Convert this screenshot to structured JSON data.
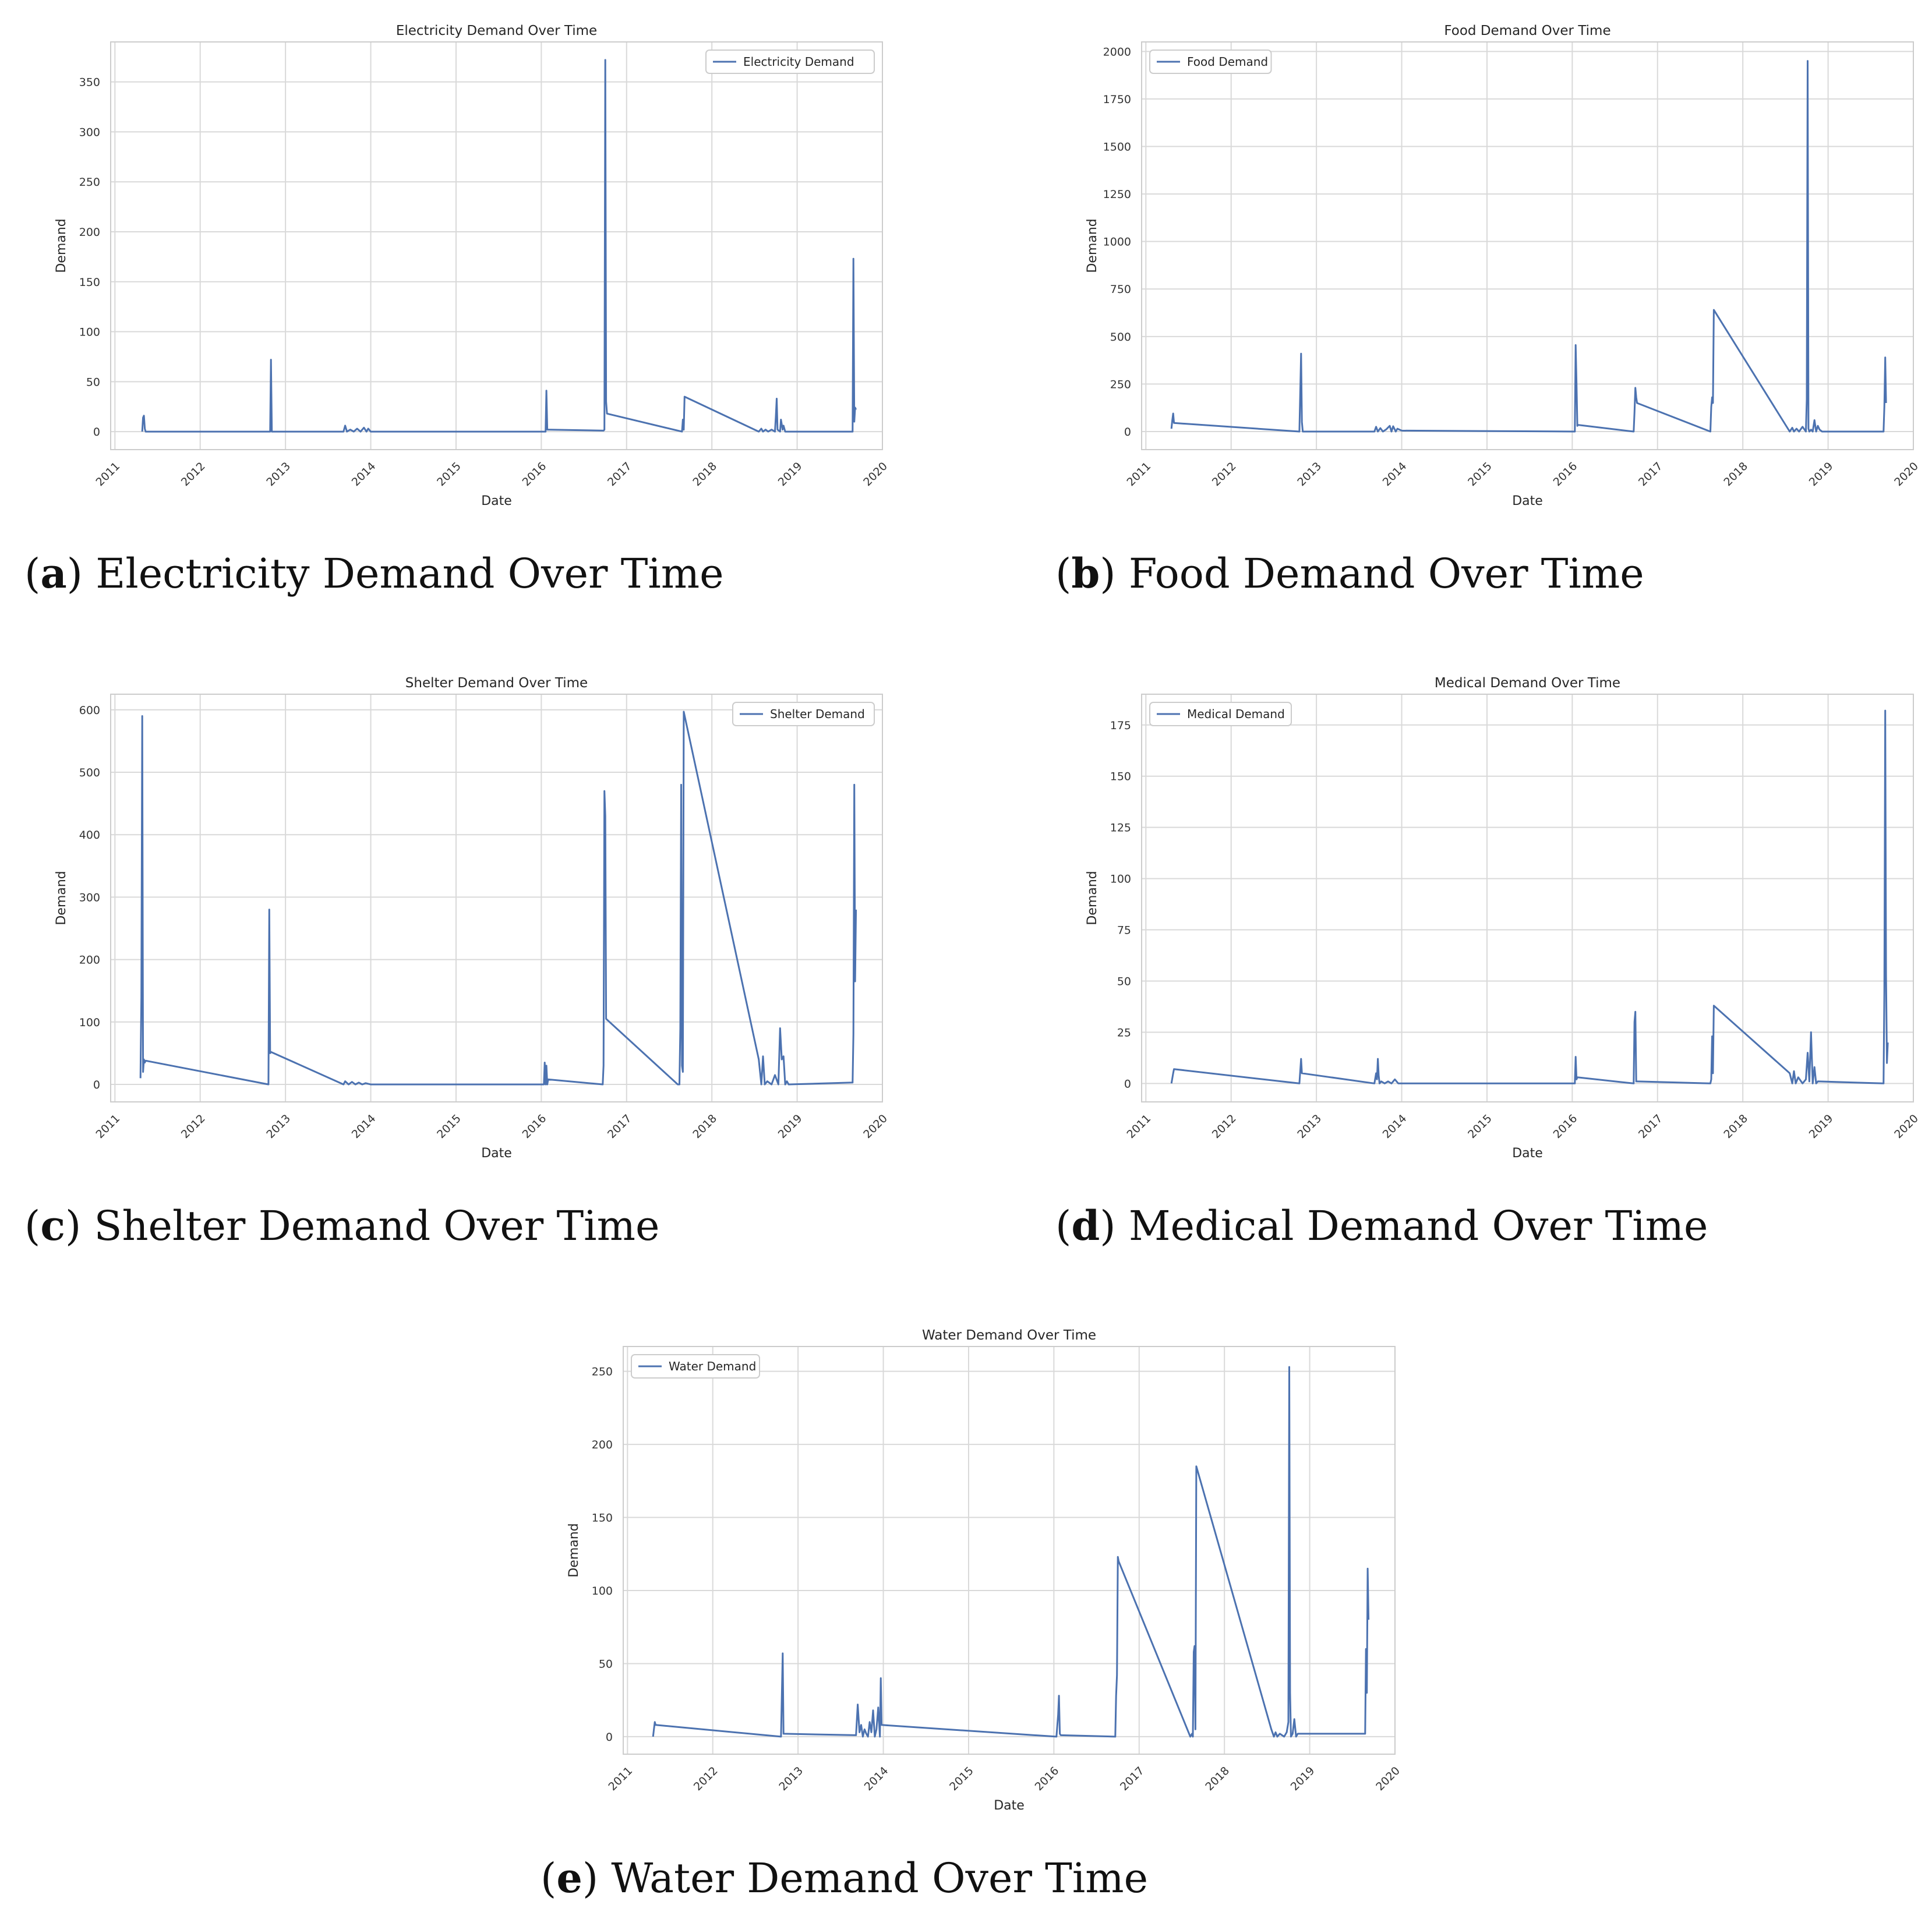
{
  "colors": {
    "line": "#4c72b0",
    "grid": "#d9d9d9",
    "axes_border": "#cccccc",
    "background": "#ffffff"
  },
  "chart_data": [
    {
      "id": "a",
      "type": "line",
      "title": "Electricity Demand Over Time",
      "xlabel": "Date",
      "ylabel": "Demand",
      "xlim": [
        2010.95,
        2020.0
      ],
      "ylim": [
        -18,
        390
      ],
      "xticks": [
        2011,
        2012,
        2013,
        2014,
        2015,
        2016,
        2017,
        2018,
        2019,
        2020
      ],
      "xtick_labels": [
        "2011",
        "2012",
        "2013",
        "2014",
        "2015",
        "2016",
        "2017",
        "2018",
        "2019",
        "2020"
      ],
      "yticks": [
        0,
        50,
        100,
        150,
        200,
        250,
        300,
        350
      ],
      "ytick_labels": [
        "0",
        "50",
        "100",
        "150",
        "200",
        "250",
        "300",
        "350"
      ],
      "legend_loc": "upper right",
      "grid": true,
      "series": [
        {
          "name": "Electricity Demand",
          "x": [
            2011.32,
            2011.33,
            2011.34,
            2011.35,
            2011.36,
            2012.82,
            2012.83,
            2012.84,
            2013.68,
            2013.7,
            2013.72,
            2013.76,
            2013.8,
            2013.84,
            2013.88,
            2013.92,
            2013.95,
            2013.97,
            2014.0,
            2016.05,
            2016.06,
            2016.07,
            2016.08,
            2016.1,
            2016.73,
            2016.74,
            2016.75,
            2016.76,
            2016.77,
            2017.65,
            2017.66,
            2017.67,
            2017.68,
            2018.55,
            2018.58,
            2018.6,
            2018.63,
            2018.66,
            2018.7,
            2018.74,
            2018.75,
            2018.76,
            2018.77,
            2018.8,
            2018.81,
            2018.83,
            2018.84,
            2018.86,
            2018.88,
            2019.65,
            2019.66,
            2019.67,
            2019.68,
            2019.69
          ],
          "values": [
            0,
            14,
            16,
            3,
            0,
            0,
            72,
            0,
            0,
            6,
            0,
            2,
            0,
            3,
            0,
            4,
            0,
            3,
            0,
            0,
            41,
            2,
            2,
            2,
            1,
            2,
            372,
            30,
            18,
            0,
            12,
            2,
            35,
            0,
            3,
            0,
            2,
            0,
            2,
            0,
            15,
            33,
            2,
            0,
            12,
            2,
            6,
            0,
            0,
            0,
            173,
            10,
            24,
            22
          ]
        }
      ]
    },
    {
      "id": "b",
      "type": "line",
      "title": "Food Demand Over Time",
      "xlabel": "Date",
      "ylabel": "Demand",
      "xlim": [
        2010.95,
        2020.0
      ],
      "ylim": [
        -95,
        2050
      ],
      "xticks": [
        2011,
        2012,
        2013,
        2014,
        2015,
        2016,
        2017,
        2018,
        2019,
        2020
      ],
      "xtick_labels": [
        "2011",
        "2012",
        "2013",
        "2014",
        "2015",
        "2016",
        "2017",
        "2018",
        "2019",
        "2020"
      ],
      "yticks": [
        0,
        250,
        500,
        750,
        1000,
        1250,
        1500,
        1750,
        2000
      ],
      "ytick_labels": [
        "0",
        "250",
        "500",
        "750",
        "1000",
        "1250",
        "1500",
        "1750",
        "2000"
      ],
      "legend_loc": "upper left",
      "grid": true,
      "series": [
        {
          "name": "Food Demand",
          "x": [
            2011.3,
            2011.31,
            2011.32,
            2011.33,
            2012.8,
            2012.82,
            2012.83,
            2012.84,
            2013.68,
            2013.7,
            2013.72,
            2013.75,
            2013.78,
            2013.82,
            2013.86,
            2013.88,
            2013.9,
            2013.93,
            2013.95,
            2014.0,
            2016.03,
            2016.04,
            2016.05,
            2016.06,
            2016.07,
            2016.72,
            2016.73,
            2016.74,
            2016.75,
            2016.76,
            2017.62,
            2017.63,
            2017.64,
            2017.65,
            2017.66,
            2018.55,
            2018.58,
            2018.6,
            2018.63,
            2018.66,
            2018.7,
            2018.74,
            2018.75,
            2018.76,
            2018.77,
            2018.78,
            2018.8,
            2018.82,
            2018.84,
            2018.86,
            2018.88,
            2018.9,
            2018.93,
            2019.65,
            2019.66,
            2019.67,
            2019.68
          ],
          "values": [
            15,
            60,
            95,
            45,
            0,
            410,
            50,
            0,
            0,
            25,
            0,
            18,
            0,
            12,
            30,
            0,
            28,
            0,
            15,
            5,
            0,
            455,
            250,
            30,
            35,
            0,
            100,
            230,
            180,
            150,
            0,
            130,
            180,
            150,
            640,
            0,
            20,
            0,
            15,
            0,
            25,
            0,
            170,
            1950,
            15,
            0,
            10,
            0,
            60,
            0,
            30,
            10,
            0,
            0,
            130,
            390,
            150
          ]
        }
      ]
    },
    {
      "id": "c",
      "type": "line",
      "title": "Shelter Demand Over Time",
      "xlabel": "Date",
      "ylabel": "Demand",
      "xlim": [
        2010.95,
        2020.0
      ],
      "ylim": [
        -28,
        625
      ],
      "xticks": [
        2011,
        2012,
        2013,
        2014,
        2015,
        2016,
        2017,
        2018,
        2019,
        2020
      ],
      "xtick_labels": [
        "2011",
        "2012",
        "2013",
        "2014",
        "2015",
        "2016",
        "2017",
        "2018",
        "2019",
        "2020"
      ],
      "yticks": [
        0,
        100,
        200,
        300,
        400,
        500,
        600
      ],
      "ytick_labels": [
        "0",
        "100",
        "200",
        "300",
        "400",
        "500",
        "600"
      ],
      "legend_loc": "upper right",
      "grid": true,
      "series": [
        {
          "name": "Shelter Demand",
          "x": [
            2011.3,
            2011.31,
            2011.32,
            2011.33,
            2011.34,
            2011.35,
            2011.36,
            2012.8,
            2012.81,
            2012.82,
            2012.83,
            2013.68,
            2013.7,
            2013.74,
            2013.78,
            2013.82,
            2013.86,
            2013.9,
            2013.94,
            2014.0,
            2016.03,
            2016.04,
            2016.05,
            2016.06,
            2016.07,
            2016.08,
            2016.72,
            2016.73,
            2016.74,
            2016.75,
            2016.76,
            2017.6,
            2017.62,
            2017.63,
            2017.64,
            2017.65,
            2017.66,
            2017.67,
            2018.55,
            2018.58,
            2018.6,
            2018.62,
            2018.65,
            2018.7,
            2018.74,
            2018.78,
            2018.8,
            2018.82,
            2018.84,
            2018.86,
            2018.88,
            2018.9,
            2019.65,
            2019.66,
            2019.67,
            2019.68,
            2019.69
          ],
          "values": [
            10,
            140,
            590,
            20,
            40,
            35,
            38,
            0,
            280,
            50,
            52,
            0,
            5,
            0,
            4,
            0,
            3,
            0,
            2,
            0,
            0,
            35,
            0,
            30,
            0,
            8,
            0,
            30,
            470,
            430,
            105,
            0,
            0,
            90,
            480,
            30,
            20,
            597,
            40,
            0,
            45,
            0,
            5,
            0,
            15,
            0,
            90,
            40,
            45,
            0,
            5,
            0,
            3,
            80,
            480,
            165,
            280
          ]
        }
      ]
    },
    {
      "id": "d",
      "type": "line",
      "title": "Medical Demand Over Time",
      "xlabel": "Date",
      "ylabel": "Demand",
      "xlim": [
        2010.95,
        2020.0
      ],
      "ylim": [
        -9,
        190
      ],
      "xticks": [
        2011,
        2012,
        2013,
        2014,
        2015,
        2016,
        2017,
        2018,
        2019,
        2020
      ],
      "xtick_labels": [
        "2011",
        "2012",
        "2013",
        "2014",
        "2015",
        "2016",
        "2017",
        "2018",
        "2019",
        "2020"
      ],
      "yticks": [
        0,
        25,
        50,
        75,
        100,
        125,
        150,
        175
      ],
      "ytick_labels": [
        "0",
        "25",
        "50",
        "75",
        "100",
        "125",
        "150",
        "175"
      ],
      "legend_loc": "upper left",
      "grid": true,
      "series": [
        {
          "name": "Medical Demand",
          "x": [
            2011.3,
            2011.32,
            2011.33,
            2012.8,
            2012.82,
            2012.83,
            2013.68,
            2013.7,
            2013.71,
            2013.72,
            2013.73,
            2013.74,
            2013.76,
            2013.8,
            2013.84,
            2013.88,
            2013.92,
            2013.96,
            2014.0,
            2016.03,
            2016.04,
            2016.05,
            2016.06,
            2016.72,
            2016.73,
            2016.74,
            2016.75,
            2017.62,
            2017.63,
            2017.64,
            2017.65,
            2017.66,
            2018.55,
            2018.58,
            2018.6,
            2018.62,
            2018.65,
            2018.7,
            2018.74,
            2018.76,
            2018.78,
            2018.8,
            2018.82,
            2018.84,
            2018.86,
            2018.88,
            2019.65,
            2019.66,
            2019.67,
            2019.68,
            2019.69,
            2019.7
          ],
          "values": [
            0,
            5,
            7,
            0,
            12,
            5,
            0,
            5,
            2,
            12,
            4,
            0,
            1,
            0,
            1,
            0,
            2,
            0,
            0,
            0,
            13,
            2,
            3,
            0,
            30,
            35,
            1,
            0,
            2,
            23,
            5,
            38,
            5,
            0,
            6,
            0,
            3,
            0,
            2,
            15,
            1,
            25,
            0,
            8,
            0,
            1,
            0,
            45,
            182,
            53,
            10,
            20
          ]
        }
      ]
    },
    {
      "id": "e",
      "type": "line",
      "title": "Water Demand Over Time",
      "xlabel": "Date",
      "ylabel": "Demand",
      "xlim": [
        2010.95,
        2020.0
      ],
      "ylim": [
        -12,
        267
      ],
      "xticks": [
        2011,
        2012,
        2013,
        2014,
        2015,
        2016,
        2017,
        2018,
        2019,
        2020
      ],
      "xtick_labels": [
        "2011",
        "2012",
        "2013",
        "2014",
        "2015",
        "2016",
        "2017",
        "2018",
        "2019",
        "2020"
      ],
      "yticks": [
        0,
        50,
        100,
        150,
        200,
        250
      ],
      "ytick_labels": [
        "0",
        "50",
        "100",
        "150",
        "200",
        "250"
      ],
      "legend_loc": "upper left",
      "grid": true,
      "series": [
        {
          "name": "Water Demand",
          "x": [
            2011.3,
            2011.32,
            2011.33,
            2012.8,
            2012.82,
            2012.83,
            2013.68,
            2013.7,
            2013.72,
            2013.74,
            2013.76,
            2013.78,
            2013.8,
            2013.82,
            2013.84,
            2013.86,
            2013.88,
            2013.9,
            2013.92,
            2013.94,
            2013.96,
            2013.97,
            2013.98,
            2016.03,
            2016.05,
            2016.06,
            2016.07,
            2016.08,
            2016.72,
            2016.73,
            2016.74,
            2016.75,
            2016.76,
            2017.6,
            2017.62,
            2017.63,
            2017.64,
            2017.65,
            2017.66,
            2017.67,
            2018.55,
            2018.58,
            2018.6,
            2018.62,
            2018.65,
            2018.7,
            2018.73,
            2018.75,
            2018.76,
            2018.77,
            2018.78,
            2018.8,
            2018.82,
            2018.84,
            2018.86,
            2019.65,
            2019.66,
            2019.67,
            2019.68,
            2019.69
          ],
          "values": [
            0,
            10,
            8,
            0,
            57,
            2,
            1,
            22,
            3,
            8,
            0,
            5,
            2,
            0,
            10,
            3,
            18,
            0,
            5,
            20,
            0,
            40,
            8,
            0,
            15,
            28,
            2,
            1,
            0,
            28,
            42,
            123,
            120,
            0,
            2,
            0,
            58,
            62,
            5,
            185,
            5,
            0,
            3,
            0,
            2,
            0,
            3,
            10,
            253,
            30,
            0,
            2,
            12,
            0,
            2,
            2,
            60,
            30,
            115,
            80
          ]
        }
      ]
    }
  ],
  "captions": [
    {
      "letter": "a",
      "open": "(",
      "close": ")",
      "text": " Electricity Demand Over Time"
    },
    {
      "letter": "b",
      "open": "(",
      "close": ")",
      "text": " Food Demand Over Time"
    },
    {
      "letter": "c",
      "open": "(",
      "close": ")",
      "text": " Shelter Demand Over Time"
    },
    {
      "letter": "d",
      "open": "(",
      "close": ")",
      "text": " Medical Demand Over Time"
    },
    {
      "letter": "e",
      "open": "(",
      "close": ")",
      "text": " Water Demand Over Time"
    }
  ]
}
